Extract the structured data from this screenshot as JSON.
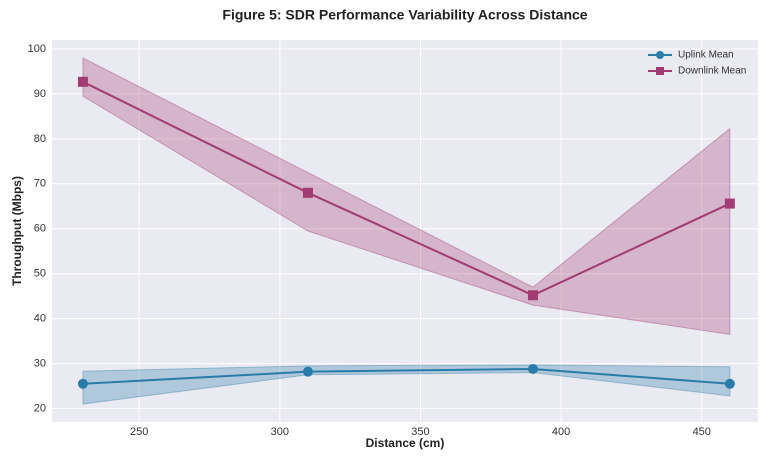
{
  "chart_data": {
    "type": "line",
    "title": "Figure 5: SDR Performance Variability Across Distance",
    "x_label": "Distance (cm)",
    "y_label": "Throughput (Mbps)",
    "x": [
      230,
      310,
      390,
      460
    ],
    "series": [
      {
        "name": "Uplink Mean",
        "color": "#2a7ca8",
        "marker": "circle",
        "values": [
          25.5,
          28.2,
          28.8,
          25.5
        ],
        "lower": [
          21,
          27.5,
          28,
          22.8
        ],
        "upper": [
          28.3,
          29.5,
          29.7,
          29.3
        ]
      },
      {
        "name": "Downlink Mean",
        "color": "#a23b72",
        "marker": "square",
        "values": [
          92.7,
          68,
          45.2,
          65.6
        ],
        "lower": [
          89.5,
          59.5,
          43,
          36.5
        ],
        "upper": [
          98,
          72.5,
          47,
          82.3
        ]
      }
    ],
    "xlim": [
      219,
      470
    ],
    "xticks": [
      250,
      300,
      350,
      400,
      450
    ],
    "ylim": [
      17,
      102
    ],
    "yticks": [
      20,
      30,
      40,
      50,
      60,
      70,
      80,
      90,
      100
    ],
    "grid": true,
    "legend": "upper right"
  }
}
